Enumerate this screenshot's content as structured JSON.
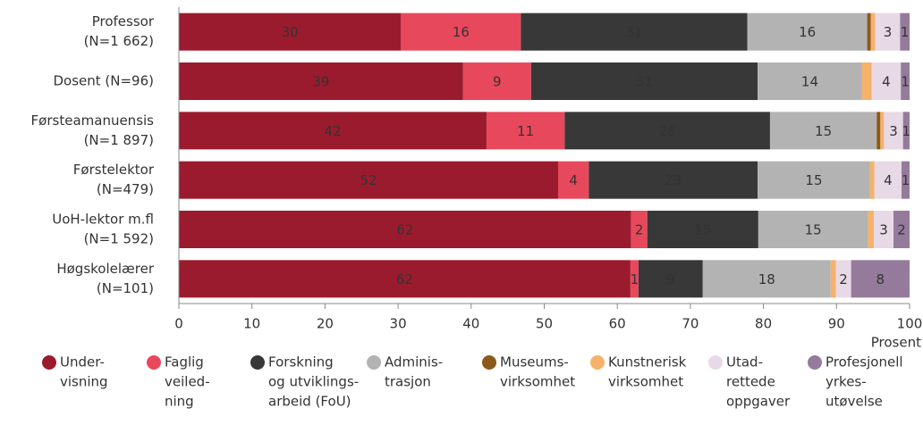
{
  "chart_data": {
    "type": "stacked-barh",
    "x_label": "Prosent",
    "categories": [
      [
        "Professor",
        "(N=1 662)"
      ],
      [
        "Dosent (N=96)"
      ],
      [
        "Førsteamanuensis",
        "(N=1 897)"
      ],
      [
        "Førstelektor",
        "(N=479)"
      ],
      [
        "UoH-lektor m.fl",
        "(N=1 592)"
      ],
      [
        "Høgskolelærer",
        "(N=101)"
      ]
    ],
    "xlim": [
      0,
      100
    ],
    "xticks": [
      0,
      10,
      20,
      30,
      40,
      50,
      60,
      70,
      80,
      90,
      100
    ],
    "series": [
      {
        "name": [
          "Under-",
          "visning"
        ],
        "color": "#9b1b2e",
        "values": [
          30.4,
          38.9,
          42.1,
          51.9,
          61.9,
          61.8
        ],
        "value_labels": [
          "30",
          "39",
          "42",
          "52",
          "62",
          "62"
        ]
      },
      {
        "name": [
          "Faglig",
          "veiled-",
          "ning"
        ],
        "color": "#e8485c",
        "values": [
          16.4,
          9.3,
          10.7,
          4.2,
          2.2,
          1.1
        ],
        "value_labels": [
          "16",
          "9",
          "11",
          "4",
          "2",
          "1"
        ]
      },
      {
        "name": [
          "Forskning",
          "og utviklings-",
          "arbeid (FoU)"
        ],
        "color": "#383838",
        "values": [
          31.0,
          31.0,
          28.1,
          23.1,
          15.2,
          8.8
        ],
        "value_labels": [
          "31",
          "31",
          "28",
          "23",
          "15",
          "9"
        ]
      },
      {
        "name": [
          "Adminis-",
          "trasjon"
        ],
        "color": "#b3b3b3",
        "values": [
          16.4,
          14.3,
          14.6,
          15.4,
          15.0,
          17.5
        ],
        "value_labels": [
          "16",
          "14",
          "15",
          "15",
          "15",
          "18"
        ]
      },
      {
        "name": [
          "Museums-",
          "virksomhet"
        ],
        "color": "#8b5a1a",
        "values": [
          0.5,
          0,
          0.5,
          0,
          0,
          0
        ],
        "value_labels": [
          null,
          null,
          null,
          null,
          null,
          null
        ]
      },
      {
        "name": [
          "Kunstnerisk",
          "virksomhet"
        ],
        "color": "#f5b26b",
        "values": [
          0.6,
          1.3,
          0.5,
          0.6,
          0.8,
          0.7
        ],
        "value_labels": [
          null,
          null,
          null,
          null,
          null,
          null
        ]
      },
      {
        "name": [
          "Utad-",
          "rettede",
          "oppgaver"
        ],
        "color": "#e8d9e6",
        "values": [
          3.4,
          4.0,
          2.6,
          3.7,
          2.7,
          2.1
        ],
        "value_labels": [
          "3",
          "4",
          "3",
          "4",
          "3",
          "2"
        ]
      },
      {
        "name": [
          "Profesjonell",
          "yrkes-",
          "utøvelse"
        ],
        "color": "#957b9b",
        "values": [
          1.3,
          1.2,
          0.9,
          1.1,
          2.2,
          8.0
        ],
        "value_labels": [
          "1",
          "1",
          "1",
          "1",
          "2",
          "8"
        ]
      }
    ]
  }
}
